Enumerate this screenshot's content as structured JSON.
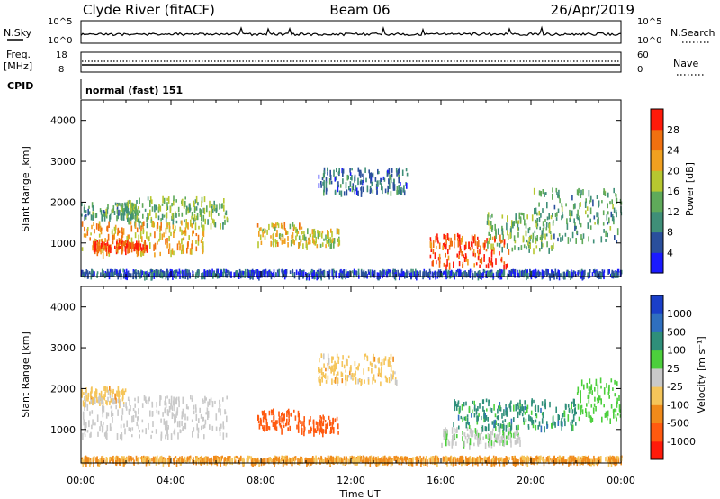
{
  "header": {
    "left_title": "Clyde River (fitACF)",
    "center_title": "Beam 06",
    "right_title": "26/Apr/2019"
  },
  "strips": {
    "nsky_label": "N.Sky",
    "nsky_ticks": [
      "10^5",
      "10^0"
    ],
    "nsearch_label": "N.Search",
    "nsearch_ticks": [
      "10^5",
      "10^0"
    ],
    "freq_label": "Freq.",
    "freq_unit": "[MHz]",
    "freq_ticks": [
      "18",
      "8"
    ],
    "nave_label": "Nave",
    "nave_ticks": [
      "60",
      "0"
    ],
    "cpid_label": "CPID",
    "cpid_value": "normal (fast) 151"
  },
  "colors": {
    "power_scale": [
      "#1a1aff",
      "#2a4f9c",
      "#3f8f78",
      "#5faa5a",
      "#b7c730",
      "#f0a020",
      "#f07010",
      "#ff1a0a"
    ],
    "velocity_scale": [
      "#ff1a0a",
      "#ff5a10",
      "#f08a1a",
      "#f5c55a",
      "#c9c9c9",
      "#4ccf3c",
      "#2f8f7a",
      "#2f6fbf",
      "#1a3fc9"
    ]
  },
  "chart_data": [
    {
      "type": "heatmap",
      "panel": "power",
      "xlabel": "Time UT",
      "ylabel": "Slant Range [km]",
      "xlim": [
        0,
        24
      ],
      "ylim": [
        180,
        4500
      ],
      "xticks": [
        "00:00",
        "04:00",
        "08:00",
        "12:00",
        "16:00",
        "20:00",
        "00:00"
      ],
      "yticks": [
        1000,
        2000,
        3000,
        4000
      ],
      "colorbar": {
        "label": "Power [dB]",
        "ticks": [
          4,
          8,
          12,
          16,
          20,
          24,
          28
        ]
      },
      "regions": [
        {
          "t0": 0.0,
          "t1": 2.5,
          "r0": 1600,
          "r1": 1950,
          "value": 12
        },
        {
          "t0": 2.0,
          "t1": 6.5,
          "r0": 1400,
          "r1": 2100,
          "value": 14
        },
        {
          "t0": 0.0,
          "t1": 5.5,
          "r0": 700,
          "r1": 1500,
          "value": 22
        },
        {
          "t0": 0.5,
          "t1": 3.0,
          "r0": 800,
          "r1": 1000,
          "value": 28
        },
        {
          "t0": 7.8,
          "t1": 9.8,
          "r0": 950,
          "r1": 1450,
          "value": 20
        },
        {
          "t0": 9.8,
          "t1": 11.5,
          "r0": 900,
          "r1": 1300,
          "value": 18
        },
        {
          "t0": 10.5,
          "t1": 14.5,
          "r0": 2200,
          "r1": 2800,
          "value": 8
        },
        {
          "t0": 15.5,
          "t1": 19.0,
          "r0": 400,
          "r1": 1200,
          "value": 28
        },
        {
          "t0": 18.0,
          "t1": 21.0,
          "r0": 800,
          "r1": 1700,
          "value": 14
        },
        {
          "t0": 20.0,
          "t1": 24.0,
          "r0": 1000,
          "r1": 2300,
          "value": 12
        },
        {
          "t0": 0.0,
          "t1": 24.0,
          "r0": 180,
          "r1": 300,
          "value": 6
        }
      ]
    },
    {
      "type": "heatmap",
      "panel": "velocity",
      "xlabel": "Time UT",
      "ylabel": "Slant Range [km]",
      "xlim": [
        0,
        24
      ],
      "ylim": [
        180,
        4500
      ],
      "xticks": [
        "00:00",
        "04:00",
        "08:00",
        "12:00",
        "16:00",
        "20:00",
        "00:00"
      ],
      "yticks": [
        1000,
        2000,
        3000,
        4000
      ],
      "colorbar": {
        "label": "Velocity [m s⁻¹]",
        "ticks": [
          1000,
          500,
          100,
          25,
          -25,
          -100,
          -500,
          -1000
        ]
      },
      "regions": [
        {
          "t0": 0.0,
          "t1": 2.0,
          "r0": 1600,
          "r1": 2000,
          "value": 0
        },
        {
          "t0": 0.0,
          "t1": 6.5,
          "r0": 800,
          "r1": 1800,
          "value": 60
        },
        {
          "t0": 7.8,
          "t1": 9.8,
          "r0": 950,
          "r1": 1450,
          "value": -200
        },
        {
          "t0": 9.8,
          "t1": 11.5,
          "r0": 900,
          "r1": 1300,
          "value": -200
        },
        {
          "t0": 10.5,
          "t1": 14.0,
          "r0": 2100,
          "r1": 2800,
          "value": 0
        },
        {
          "t0": 16.0,
          "t1": 19.5,
          "r0": 600,
          "r1": 1000,
          "value": 80
        },
        {
          "t0": 16.5,
          "t1": 22.0,
          "r0": 1000,
          "r1": 1700,
          "value": 700
        },
        {
          "t0": 22.0,
          "t1": 24.0,
          "r0": 1200,
          "r1": 2200,
          "value": 300
        },
        {
          "t0": 0.0,
          "t1": 24.0,
          "r0": 180,
          "r1": 300,
          "value": -30
        }
      ]
    }
  ]
}
